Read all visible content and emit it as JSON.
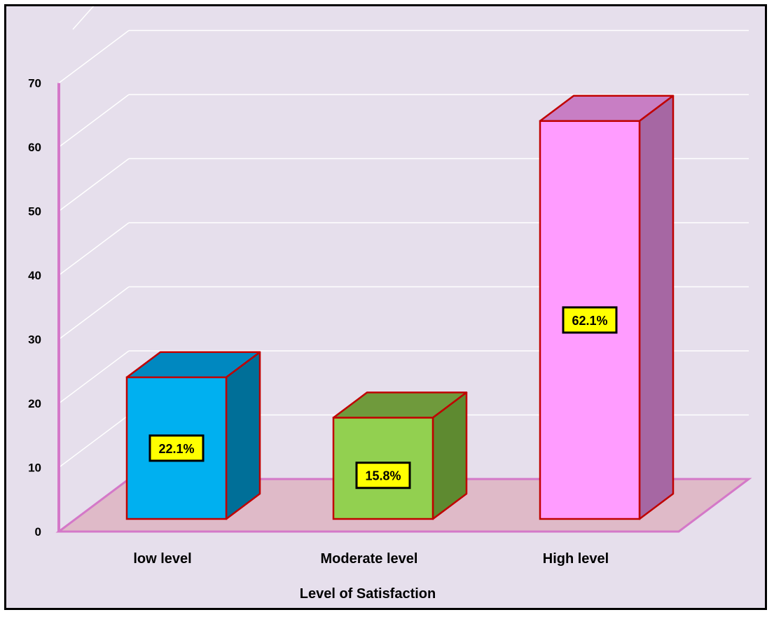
{
  "chart_data": {
    "type": "bar",
    "xlabel": "Level of Satisfaction",
    "ylabel": "",
    "ylim": [
      0,
      70
    ],
    "yticks": [
      0,
      10,
      20,
      30,
      40,
      50,
      60,
      70
    ],
    "categories": [
      "low level",
      "Moderate level",
      "High level"
    ],
    "values": [
      22.1,
      15.8,
      62.1
    ],
    "data_labels": [
      "22.1%",
      "15.8%",
      "62.1%"
    ],
    "grid": true,
    "legend": "none",
    "style": "3d-column",
    "colors": {
      "bars_front": [
        "#00b0f0",
        "#92d050",
        "#ff9cff"
      ],
      "bars_side": [
        "#006f98",
        "#5e8a30",
        "#a667a3"
      ],
      "bars_top": [
        "#0088c0",
        "#6f9a3c",
        "#c87ec4"
      ],
      "bar_outline": "#c00000",
      "axis": "#d478c8",
      "floor": "#dfbac8",
      "grid": "#ffffff",
      "background": "#e6dfec",
      "label_box": "#ffff00"
    }
  }
}
